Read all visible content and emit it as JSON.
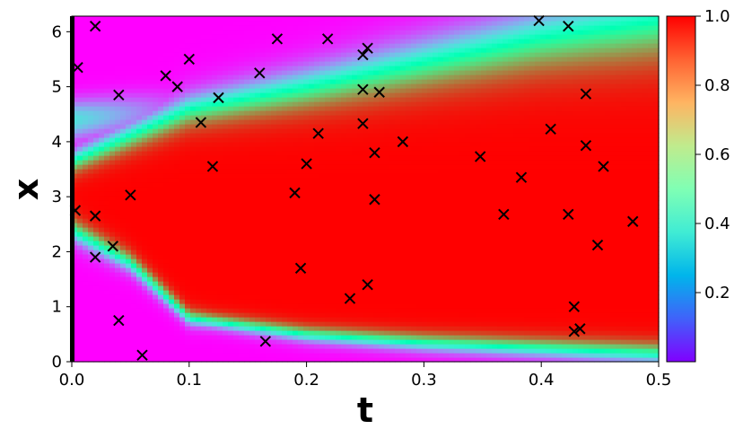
{
  "chart_data": {
    "type": "heatmap",
    "title": "",
    "xlabel": "t",
    "ylabel": "x",
    "xlim": [
      0,
      0.5
    ],
    "ylim": [
      0,
      6.283
    ],
    "x_ticks": [
      "0.0",
      "0.1",
      "0.2",
      "0.3",
      "0.4",
      "0.5"
    ],
    "x_tick_values": [
      0,
      0.1,
      0.2,
      0.3,
      0.4,
      0.5
    ],
    "y_ticks": [
      "0",
      "1",
      "2",
      "3",
      "4",
      "5",
      "6"
    ],
    "y_tick_values": [
      0,
      1,
      2,
      3,
      4,
      5,
      6
    ],
    "colormap": "rainbow",
    "colorbar": {
      "range": [
        0.0,
        1.0
      ],
      "ticks": [
        "0.2",
        "0.4",
        "0.6",
        "0.8",
        "1.0"
      ],
      "tick_values": [
        0.2,
        0.4,
        0.6,
        0.8,
        1.0
      ]
    },
    "field_description": {
      "initial_profile": "high near x=pi, low near x=0 and x=2pi",
      "upper_boundary_t": [
        0.0,
        0.1,
        0.2,
        0.3,
        0.4,
        0.5
      ],
      "upper_boundary_x": [
        3.65,
        4.6,
        5.0,
        5.45,
        5.9,
        6.2
      ],
      "lower_boundary_t": [
        0.0,
        0.05,
        0.1,
        0.2,
        0.3,
        0.4,
        0.5
      ],
      "lower_boundary_x": [
        2.4,
        1.8,
        0.8,
        0.5,
        0.35,
        0.25,
        0.15
      ]
    },
    "markers": {
      "symbol": "x",
      "color": "#000000",
      "points": [
        {
          "t": 0.005,
          "x": 5.35
        },
        {
          "t": 0.02,
          "x": 6.1
        },
        {
          "t": 0.003,
          "x": 2.75
        },
        {
          "t": 0.02,
          "x": 2.65
        },
        {
          "t": 0.02,
          "x": 1.9
        },
        {
          "t": 0.035,
          "x": 2.1
        },
        {
          "t": 0.04,
          "x": 0.75
        },
        {
          "t": 0.06,
          "x": 0.12
        },
        {
          "t": 0.04,
          "x": 4.85
        },
        {
          "t": 0.05,
          "x": 3.03
        },
        {
          "t": 0.08,
          "x": 5.2
        },
        {
          "t": 0.09,
          "x": 5.0
        },
        {
          "t": 0.1,
          "x": 5.5
        },
        {
          "t": 0.11,
          "x": 4.35
        },
        {
          "t": 0.12,
          "x": 3.55
        },
        {
          "t": 0.125,
          "x": 4.8
        },
        {
          "t": 0.16,
          "x": 5.25
        },
        {
          "t": 0.175,
          "x": 5.87
        },
        {
          "t": 0.165,
          "x": 0.37
        },
        {
          "t": 0.19,
          "x": 3.07
        },
        {
          "t": 0.195,
          "x": 1.7
        },
        {
          "t": 0.2,
          "x": 3.6
        },
        {
          "t": 0.21,
          "x": 4.15
        },
        {
          "t": 0.218,
          "x": 5.87
        },
        {
          "t": 0.237,
          "x": 1.15
        },
        {
          "t": 0.248,
          "x": 5.58
        },
        {
          "t": 0.252,
          "x": 5.7
        },
        {
          "t": 0.248,
          "x": 4.95
        },
        {
          "t": 0.248,
          "x": 4.33
        },
        {
          "t": 0.252,
          "x": 1.4
        },
        {
          "t": 0.258,
          "x": 3.8
        },
        {
          "t": 0.258,
          "x": 2.95
        },
        {
          "t": 0.262,
          "x": 4.9
        },
        {
          "t": 0.282,
          "x": 4.0
        },
        {
          "t": 0.348,
          "x": 3.73
        },
        {
          "t": 0.368,
          "x": 2.68
        },
        {
          "t": 0.383,
          "x": 3.35
        },
        {
          "t": 0.398,
          "x": 6.2
        },
        {
          "t": 0.408,
          "x": 4.23
        },
        {
          "t": 0.423,
          "x": 6.1
        },
        {
          "t": 0.423,
          "x": 2.68
        },
        {
          "t": 0.428,
          "x": 1.0
        },
        {
          "t": 0.428,
          "x": 0.55
        },
        {
          "t": 0.433,
          "x": 0.6
        },
        {
          "t": 0.438,
          "x": 4.87
        },
        {
          "t": 0.438,
          "x": 3.93
        },
        {
          "t": 0.448,
          "x": 2.12
        },
        {
          "t": 0.453,
          "x": 3.55
        },
        {
          "t": 0.478,
          "x": 2.55
        }
      ]
    }
  }
}
